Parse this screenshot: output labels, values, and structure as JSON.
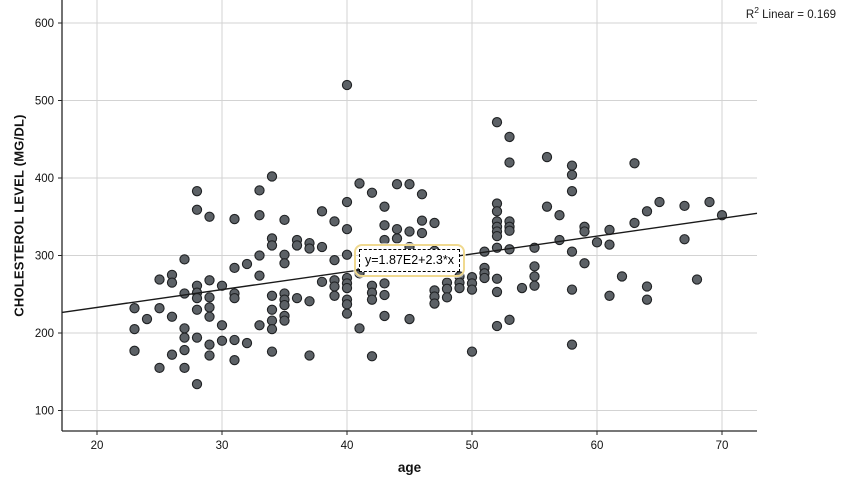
{
  "chart_data": {
    "type": "scatter",
    "title": "",
    "xlabel": "age",
    "ylabel": "CHOLESTEROL LEVEL (MG/DL)",
    "x_ticks": [
      20,
      30,
      40,
      50,
      60,
      70
    ],
    "y_ticks": [
      100,
      200,
      300,
      400,
      500,
      600
    ],
    "xlim": [
      17.2,
      72.8
    ],
    "ylim": [
      73,
      630
    ],
    "grid": true,
    "legend_position": "none",
    "regression": {
      "intercept": 187,
      "slope": 2.3,
      "equation_label": "y=1.87E2+2.3*x"
    },
    "annotations": {
      "r_squared_base": "R",
      "r_squared_sup": "2",
      "r_squared_rest": " Linear = 0.169"
    },
    "points": [
      [
        23,
        232
      ],
      [
        23,
        205
      ],
      [
        23,
        177
      ],
      [
        24,
        218
      ],
      [
        25,
        269
      ],
      [
        25,
        232
      ],
      [
        25,
        155
      ],
      [
        26,
        275
      ],
      [
        26,
        265
      ],
      [
        26,
        221
      ],
      [
        26,
        172
      ],
      [
        27,
        295
      ],
      [
        27,
        251
      ],
      [
        27,
        206
      ],
      [
        27,
        194
      ],
      [
        27,
        178
      ],
      [
        27,
        155
      ],
      [
        28,
        383
      ],
      [
        28,
        359
      ],
      [
        28,
        261
      ],
      [
        28,
        252
      ],
      [
        28,
        245
      ],
      [
        28,
        230
      ],
      [
        28,
        194
      ],
      [
        28,
        134
      ],
      [
        29,
        350
      ],
      [
        29,
        268
      ],
      [
        29,
        246
      ],
      [
        29,
        233
      ],
      [
        29,
        221
      ],
      [
        29,
        185
      ],
      [
        29,
        171
      ],
      [
        30,
        261
      ],
      [
        30,
        210
      ],
      [
        30,
        190
      ],
      [
        31,
        347
      ],
      [
        31,
        284
      ],
      [
        31,
        251
      ],
      [
        31,
        245
      ],
      [
        31,
        191
      ],
      [
        31,
        165
      ],
      [
        32,
        289
      ],
      [
        32,
        187
      ],
      [
        33,
        384
      ],
      [
        33,
        352
      ],
      [
        33,
        300
      ],
      [
        33,
        274
      ],
      [
        33,
        210
      ],
      [
        34,
        402
      ],
      [
        34,
        322
      ],
      [
        34,
        313
      ],
      [
        34,
        248
      ],
      [
        34,
        230
      ],
      [
        34,
        216
      ],
      [
        34,
        205
      ],
      [
        34,
        176
      ],
      [
        35,
        346
      ],
      [
        35,
        301
      ],
      [
        35,
        290
      ],
      [
        35,
        251
      ],
      [
        35,
        243
      ],
      [
        35,
        236
      ],
      [
        35,
        222
      ],
      [
        35,
        216
      ],
      [
        36,
        320
      ],
      [
        36,
        313
      ],
      [
        36,
        245
      ],
      [
        37,
        316
      ],
      [
        37,
        309
      ],
      [
        37,
        241
      ],
      [
        37,
        171
      ],
      [
        38,
        357
      ],
      [
        38,
        311
      ],
      [
        38,
        266
      ],
      [
        39,
        344
      ],
      [
        39,
        294
      ],
      [
        39,
        268
      ],
      [
        39,
        260
      ],
      [
        39,
        248
      ],
      [
        40,
        520
      ],
      [
        40,
        369
      ],
      [
        40,
        334
      ],
      [
        40,
        301
      ],
      [
        40,
        271
      ],
      [
        40,
        264
      ],
      [
        40,
        258
      ],
      [
        40,
        243
      ],
      [
        40,
        237
      ],
      [
        40,
        225
      ],
      [
        41,
        393
      ],
      [
        41,
        277
      ],
      [
        41,
        206
      ],
      [
        42,
        381
      ],
      [
        42,
        261
      ],
      [
        42,
        252
      ],
      [
        42,
        243
      ],
      [
        42,
        170
      ],
      [
        43,
        363
      ],
      [
        43,
        339
      ],
      [
        43,
        320
      ],
      [
        43,
        264
      ],
      [
        43,
        249
      ],
      [
        43,
        222
      ],
      [
        44,
        392
      ],
      [
        44,
        334
      ],
      [
        44,
        322
      ],
      [
        45,
        392
      ],
      [
        45,
        331
      ],
      [
        45,
        311
      ],
      [
        45,
        218
      ],
      [
        46,
        379
      ],
      [
        46,
        345
      ],
      [
        46,
        329
      ],
      [
        47,
        342
      ],
      [
        47,
        306
      ],
      [
        47,
        255
      ],
      [
        47,
        247
      ],
      [
        47,
        238
      ],
      [
        48,
        265
      ],
      [
        48,
        257
      ],
      [
        48,
        246
      ],
      [
        49,
        273
      ],
      [
        49,
        265
      ],
      [
        49,
        258
      ],
      [
        50,
        272
      ],
      [
        50,
        264
      ],
      [
        50,
        256
      ],
      [
        50,
        176
      ],
      [
        51,
        305
      ],
      [
        51,
        284
      ],
      [
        51,
        277
      ],
      [
        51,
        271
      ],
      [
        52,
        472
      ],
      [
        52,
        367
      ],
      [
        52,
        357
      ],
      [
        52,
        344
      ],
      [
        52,
        337
      ],
      [
        52,
        331
      ],
      [
        52,
        325
      ],
      [
        52,
        310
      ],
      [
        52,
        270
      ],
      [
        52,
        253
      ],
      [
        52,
        209
      ],
      [
        53,
        453
      ],
      [
        53,
        420
      ],
      [
        53,
        344
      ],
      [
        53,
        337
      ],
      [
        53,
        332
      ],
      [
        53,
        308
      ],
      [
        53,
        217
      ],
      [
        54,
        258
      ],
      [
        55,
        310
      ],
      [
        55,
        286
      ],
      [
        55,
        273
      ],
      [
        55,
        261
      ],
      [
        56,
        427
      ],
      [
        56,
        363
      ],
      [
        57,
        352
      ],
      [
        57,
        320
      ],
      [
        58,
        416
      ],
      [
        58,
        404
      ],
      [
        58,
        383
      ],
      [
        58,
        305
      ],
      [
        58,
        256
      ],
      [
        58,
        185
      ],
      [
        59,
        337
      ],
      [
        59,
        331
      ],
      [
        59,
        290
      ],
      [
        60,
        317
      ],
      [
        61,
        333
      ],
      [
        61,
        314
      ],
      [
        61,
        248
      ],
      [
        62,
        273
      ],
      [
        63,
        419
      ],
      [
        63,
        342
      ],
      [
        64,
        357
      ],
      [
        64,
        260
      ],
      [
        64,
        243
      ],
      [
        65,
        369
      ],
      [
        67,
        364
      ],
      [
        67,
        321
      ],
      [
        68,
        269
      ],
      [
        69,
        369
      ],
      [
        70,
        352
      ]
    ]
  },
  "colors": {
    "point_fill": "#5c6166",
    "point_stroke": "#1f2123",
    "grid": "#d3d3d3",
    "axis": "#262626",
    "regression_line": "#1a1a1a",
    "label_outline": "#f0d98f",
    "tick_text": "#111111"
  }
}
